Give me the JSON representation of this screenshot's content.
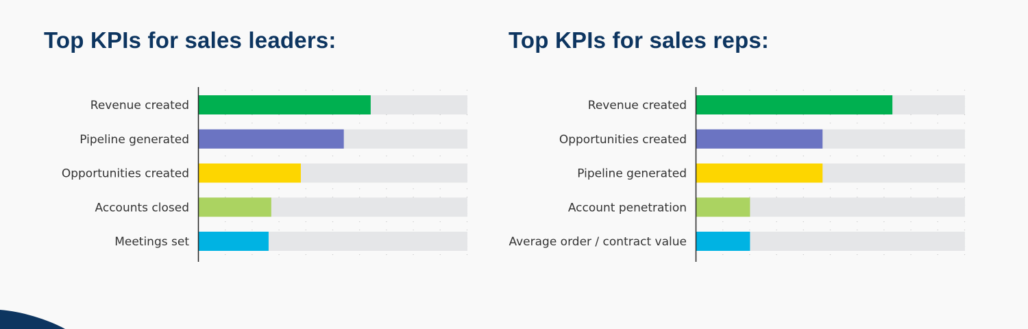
{
  "colors": {
    "title": "#0d3560",
    "track": "#e5e6e8",
    "axis": "#222222",
    "bars": [
      "#00b050",
      "#6b74c2",
      "#fdd600",
      "#abd361",
      "#00b3e3"
    ]
  },
  "chart_data": [
    {
      "type": "bar",
      "orientation": "horizontal",
      "title": "Top KPIs for sales leaders:",
      "categories": [
        "Revenue created",
        "Pipeline generated",
        "Opportunities created",
        "Accounts closed",
        "Meetings set"
      ],
      "values": [
        64,
        54,
        38,
        27,
        26
      ],
      "xlim": [
        0,
        100
      ],
      "grid": "dotted vertical",
      "axis_labels_shown": false
    },
    {
      "type": "bar",
      "orientation": "horizontal",
      "title": "Top KPIs for sales reps:",
      "categories": [
        "Revenue created",
        "Opportunities created",
        "Pipeline generated",
        "Account penetration",
        "Average order / contract value"
      ],
      "values": [
        73,
        47,
        47,
        20,
        20
      ],
      "xlim": [
        0,
        100
      ],
      "grid": "dotted vertical",
      "axis_labels_shown": false
    }
  ]
}
